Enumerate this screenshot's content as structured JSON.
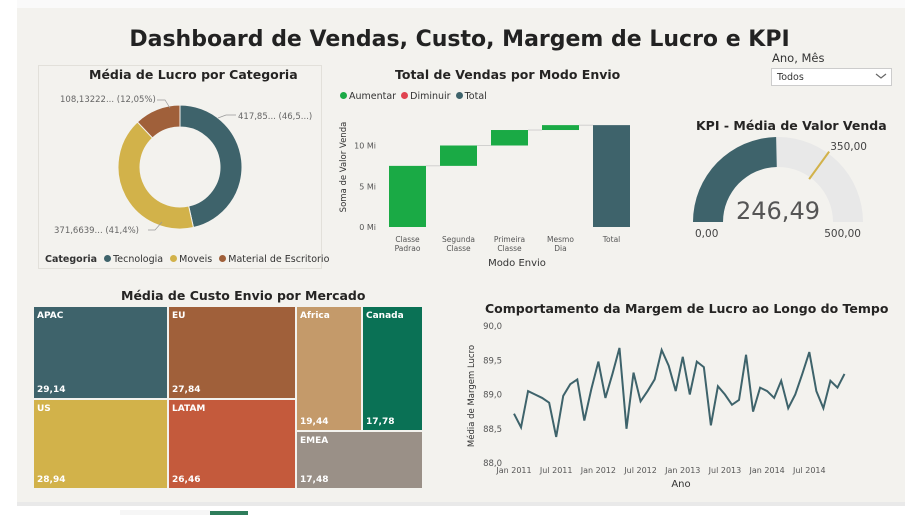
{
  "dashboard_title": "Dashboard de Vendas, Custo, Margem de Lucro e KPI",
  "slicer": {
    "label": "Ano, Mês",
    "value": "Todos"
  },
  "donut": {
    "title": "Média de Lucro por Categoria",
    "legend_title": "Categoria",
    "slices": [
      {
        "name": "Tecnologia",
        "percent": 46.5,
        "label": "417,85... (46,5...)",
        "color": "#3e636b"
      },
      {
        "name": "Moveis",
        "percent": 41.4,
        "label": "371,6639... (41,4%)",
        "color": "#d2b24a"
      },
      {
        "name": "Material de Escritorio",
        "percent": 12.05,
        "label": "108,13222... (12,05%)",
        "color": "#a0603a"
      }
    ]
  },
  "waterfall": {
    "title": "Total de Vendas por Modo Envio",
    "legend": [
      {
        "name": "Aumentar",
        "color": "#1aaa45"
      },
      {
        "name": "Diminuir",
        "color": "#e0434f"
      },
      {
        "name": "Total",
        "color": "#3e636b"
      }
    ],
    "ylabel": "Soma de Valor Venda",
    "xlabel": "Modo Envio",
    "yticks": [
      "0 Mi",
      "5 Mi",
      "10 Mi"
    ]
  },
  "gauge": {
    "title": "KPI - Média de Valor Venda",
    "value": "246,49",
    "min": "0,00",
    "max": "500,00",
    "target": "350,00",
    "fill_color": "#3e636b",
    "target_color": "#d2b24a"
  },
  "treemap": {
    "title": "Média de Custo Envio por Mercado",
    "cells": [
      {
        "name": "APAC",
        "value": "29,14",
        "color": "#3e636b"
      },
      {
        "name": "US",
        "value": "28,94",
        "color": "#d2b24a"
      },
      {
        "name": "EU",
        "value": "27,84",
        "color": "#a0603a"
      },
      {
        "name": "LATAM",
        "value": "26,46",
        "color": "#c45a3c"
      },
      {
        "name": "Africa",
        "value": "19,44",
        "color": "#c49a6a"
      },
      {
        "name": "Canada",
        "value": "17,78",
        "color": "#0a7155"
      },
      {
        "name": "EMEA",
        "value": "17,48",
        "color": "#9a9087"
      }
    ]
  },
  "line": {
    "title": "Comportamento da Margem de Lucro ao Longo do Tempo",
    "ylabel": "Média de Margem Lucro",
    "xlabel": "Ano",
    "yticks": [
      "88,0",
      "88,5",
      "89,0",
      "89,5",
      "90,0"
    ],
    "xticks": [
      "Jan 2011",
      "Jul 2011",
      "Jan 2012",
      "Jul 2012",
      "Jan 2013",
      "Jul 2013",
      "Jan 2014",
      "Jul 2014"
    ],
    "line_color": "#3e636b"
  },
  "chart_data": [
    {
      "type": "bar",
      "subtype": "waterfall",
      "title": "Total de Vendas por Modo Envio",
      "categories": [
        "Classe Padrao",
        "Segunda Classe",
        "Primeira Classe",
        "Mesmo Dia",
        "Total"
      ],
      "values": [
        7.5,
        2.5,
        1.9,
        0.6,
        12.5
      ],
      "xlabel": "Modo Envio",
      "ylabel": "Soma de Valor Venda",
      "ylim": [
        0,
        13.5
      ],
      "series": [
        {
          "name": "Aumentar"
        },
        {
          "name": "Diminuir"
        },
        {
          "name": "Total"
        }
      ]
    },
    {
      "type": "line",
      "title": "Comportamento da Margem de Lucro ao Longo do Tempo",
      "xlabel": "Ano",
      "ylabel": "Média de Margem Lucro",
      "ylim": [
        88.0,
        90.0
      ],
      "x": [
        "2011-01",
        "2011-02",
        "2011-03",
        "2011-04",
        "2011-05",
        "2011-06",
        "2011-07",
        "2011-08",
        "2011-09",
        "2011-10",
        "2011-11",
        "2011-12",
        "2012-01",
        "2012-02",
        "2012-03",
        "2012-04",
        "2012-05",
        "2012-06",
        "2012-07",
        "2012-08",
        "2012-09",
        "2012-10",
        "2012-11",
        "2012-12",
        "2013-01",
        "2013-02",
        "2013-03",
        "2013-04",
        "2013-05",
        "2013-06",
        "2013-07",
        "2013-08",
        "2013-09",
        "2013-10",
        "2013-11",
        "2013-12",
        "2014-01",
        "2014-02",
        "2014-03",
        "2014-04",
        "2014-05",
        "2014-06",
        "2014-07",
        "2014-08",
        "2014-09",
        "2014-10",
        "2014-11",
        "2014-12"
      ],
      "values": [
        88.72,
        88.52,
        89.05,
        89.0,
        88.95,
        88.88,
        88.38,
        88.98,
        89.15,
        89.22,
        88.62,
        89.08,
        89.48,
        88.95,
        89.3,
        89.68,
        88.5,
        89.32,
        88.9,
        89.05,
        89.22,
        89.65,
        89.42,
        89.05,
        89.55,
        89.0,
        89.48,
        89.4,
        88.55,
        89.12,
        89.0,
        88.85,
        88.92,
        89.58,
        88.75,
        89.1,
        89.05,
        88.95,
        89.2,
        88.8,
        89.0,
        89.3,
        89.62,
        89.05,
        88.8,
        89.2,
        89.1,
        89.3
      ],
      "xticks": [
        "Jan 2011",
        "Jul 2011",
        "Jan 2012",
        "Jul 2012",
        "Jan 2013",
        "Jul 2013",
        "Jan 2014",
        "Jul 2014"
      ]
    },
    {
      "type": "pie",
      "subtype": "donut",
      "title": "Média de Lucro por Categoria",
      "categories": [
        "Tecnologia",
        "Moveis",
        "Material de Escritorio"
      ],
      "values": [
        417.85,
        371.6639,
        108.13222
      ]
    }
  ]
}
